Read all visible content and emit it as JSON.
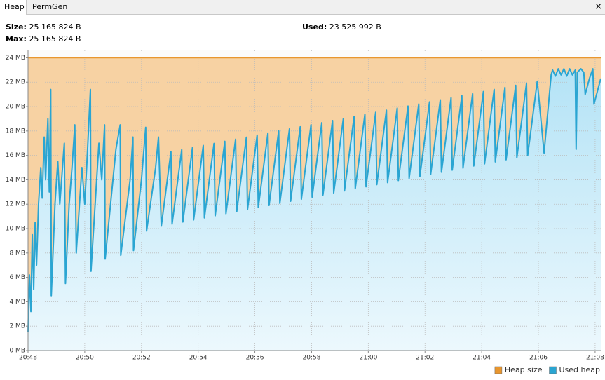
{
  "tabs": [
    "Heap",
    "PermGen"
  ],
  "close": "×",
  "info": {
    "size": {
      "label": "Size:",
      "value": "25 165 824 B"
    },
    "max": {
      "label": "Max:",
      "value": "25 165 824 B"
    },
    "used": {
      "label": "Used:",
      "value": "23 525 992 B"
    }
  },
  "chart_data": {
    "type": "area",
    "xlim": [
      0,
      20.2
    ],
    "ylim": [
      0,
      24.6
    ],
    "xticks": [
      {
        "value": 0,
        "label": "20:48"
      },
      {
        "value": 2,
        "label": "20:50"
      },
      {
        "value": 4,
        "label": "20:52"
      },
      {
        "value": 6,
        "label": "20:54"
      },
      {
        "value": 8,
        "label": "20:56"
      },
      {
        "value": 10,
        "label": "20:58"
      },
      {
        "value": 12,
        "label": "21:00"
      },
      {
        "value": 14,
        "label": "21:02"
      },
      {
        "value": 16,
        "label": "21:04"
      },
      {
        "value": 18,
        "label": "21:06"
      },
      {
        "value": 20,
        "label": "21:08"
      }
    ],
    "yticks": [
      {
        "value": 0,
        "label": "0 MB"
      },
      {
        "value": 2,
        "label": "2 MB"
      },
      {
        "value": 4,
        "label": "4 MB"
      },
      {
        "value": 6,
        "label": "6 MB"
      },
      {
        "value": 8,
        "label": "8 MB"
      },
      {
        "value": 10,
        "label": "10 MB"
      },
      {
        "value": 12,
        "label": "12 MB"
      },
      {
        "value": 14,
        "label": "14 MB"
      },
      {
        "value": 16,
        "label": "16 MB"
      },
      {
        "value": 18,
        "label": "18 MB"
      },
      {
        "value": 20,
        "label": "20 MB"
      },
      {
        "value": 22,
        "label": "22 MB"
      },
      {
        "value": 24,
        "label": "24 MB"
      }
    ],
    "grid": true,
    "legend": "bottom-right",
    "series": [
      {
        "name": "Heap size",
        "color": "#e8962e",
        "fill": "#f7d2a3",
        "x": [
          0,
          20.2
        ],
        "values": [
          24,
          24
        ]
      },
      {
        "name": "Used heap",
        "color": "#2aa5d2",
        "fill": "#bfe8f8",
        "x": [
          0,
          0.05,
          0.1,
          0.15,
          0.2,
          0.25,
          0.3,
          0.37,
          0.45,
          0.5,
          0.57,
          0.62,
          0.7,
          0.75,
          0.8,
          0.82,
          0.95,
          1.05,
          1.12,
          1.28,
          1.32,
          1.45,
          1.55,
          1.65,
          1.7,
          1.9,
          2,
          2.1,
          2.2,
          2.22,
          2.5,
          2.6,
          2.7,
          2.72,
          3.1,
          3.25,
          3.27,
          3.6,
          3.7,
          3.72,
          4,
          4.15,
          4.18,
          4.5,
          4.6,
          4.7,
          5.04,
          5.08,
          5.42,
          5.46,
          5.8,
          5.84,
          6.18,
          6.22,
          6.56,
          6.6,
          6.94,
          6.98,
          7.32,
          7.36,
          7.7,
          7.74,
          8.08,
          8.12,
          8.46,
          8.5,
          8.84,
          8.88,
          9.22,
          9.26,
          9.6,
          9.64,
          9.98,
          10.02,
          10.36,
          10.4,
          10.74,
          10.78,
          11.12,
          11.16,
          11.5,
          11.54,
          11.88,
          11.92,
          12.26,
          12.3,
          12.64,
          12.68,
          13.02,
          13.06,
          13.4,
          13.44,
          13.78,
          13.82,
          14.16,
          14.2,
          14.54,
          14.58,
          14.92,
          14.96,
          15.3,
          15.34,
          15.68,
          15.72,
          16.06,
          16.1,
          16.44,
          16.48,
          16.82,
          16.86,
          17.2,
          17.24,
          17.58,
          17.62,
          17.96,
          18.2,
          18.45,
          18.5,
          18.6,
          18.7,
          18.8,
          18.9,
          19.0,
          19.1,
          19.2,
          19.3,
          19.33,
          19.37,
          19.5,
          19.6,
          19.65,
          19.8,
          19.92,
          19.96,
          20.2
        ],
        "values": [
          1.5,
          6.2,
          3.2,
          9.5,
          5,
          10.5,
          7,
          12,
          15,
          12.5,
          17.5,
          14,
          19,
          13,
          21.4,
          4.5,
          12,
          15.5,
          12,
          17,
          5.5,
          12,
          15,
          18.5,
          8,
          15,
          12,
          16.5,
          21.4,
          6.5,
          17,
          14,
          18.5,
          7.5,
          16.5,
          18.5,
          7.8,
          14,
          17.5,
          8.2,
          14,
          18.3,
          9.8,
          15,
          17.5,
          10.2,
          16.3,
          10.37,
          16.47,
          10.54,
          16.64,
          10.71,
          16.81,
          10.88,
          16.98,
          11.05,
          17.15,
          11.22,
          17.32,
          11.39,
          17.49,
          11.56,
          17.66,
          11.73,
          17.83,
          11.9,
          18.0,
          12.07,
          18.17,
          12.24,
          18.34,
          12.41,
          18.51,
          12.58,
          18.68,
          12.75,
          18.85,
          12.92,
          19.02,
          13.09,
          19.19,
          13.26,
          19.36,
          13.43,
          19.53,
          13.6,
          19.7,
          13.77,
          19.87,
          13.94,
          20.04,
          14.11,
          20.21,
          14.28,
          20.38,
          14.45,
          20.55,
          14.62,
          20.72,
          14.79,
          20.89,
          14.96,
          21.06,
          15.13,
          21.23,
          15.3,
          21.4,
          15.47,
          21.57,
          15.64,
          21.74,
          15.81,
          21.91,
          15.98,
          22.08,
          16.2,
          22.6,
          23.0,
          22.5,
          23.1,
          22.6,
          23.1,
          22.5,
          23.1,
          22.6,
          23.0,
          16.5,
          22.8,
          23.1,
          22.8,
          21.0,
          22.3,
          23.1,
          20.2,
          22.3
        ]
      }
    ]
  }
}
